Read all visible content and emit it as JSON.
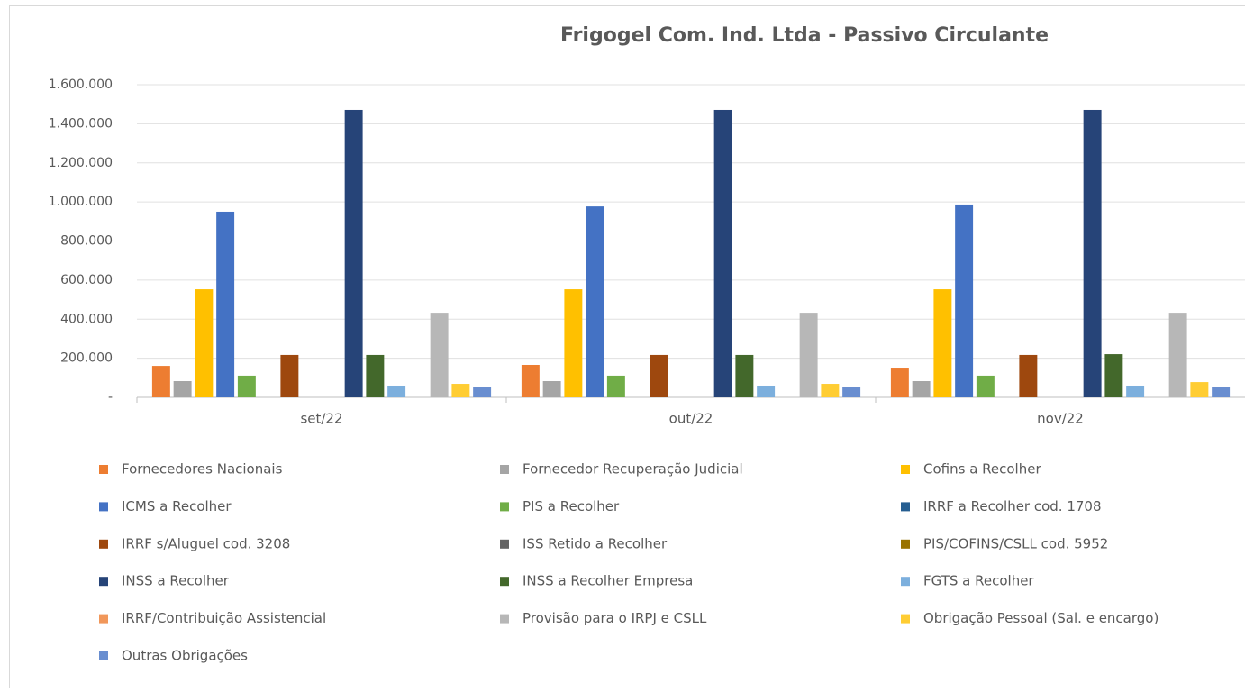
{
  "chart_data": {
    "type": "bar",
    "title": "Frigogel Com. Ind. Ltda - Passivo Circulante",
    "categories": [
      "set/22",
      "out/22",
      "nov/22"
    ],
    "series": [
      {
        "name": "Fornecedores Nacionais",
        "color": "#ed7d31",
        "values": [
          161000,
          166000,
          152000
        ]
      },
      {
        "name": "Fornecedor Recuperação Judicial",
        "color": "#a5a5a5",
        "values": [
          83000,
          83000,
          83000
        ]
      },
      {
        "name": "Cofins a Recolher",
        "color": "#ffc000",
        "values": [
          553000,
          553000,
          553000
        ]
      },
      {
        "name": "ICMS a Recolher",
        "color": "#4472c4",
        "values": [
          950000,
          977000,
          987000
        ]
      },
      {
        "name": "PIS a Recolher",
        "color": "#70ad47",
        "values": [
          111000,
          111000,
          111000
        ]
      },
      {
        "name": "IRRF a Recolher cod. 1708",
        "color": "#255e91",
        "values": [
          0,
          0,
          0
        ]
      },
      {
        "name": "IRRF s/Aluguel cod. 3208",
        "color": "#9e480e",
        "values": [
          217000,
          217000,
          217000
        ]
      },
      {
        "name": "ISS Retido a Recolher",
        "color": "#636363",
        "values": [
          0,
          0,
          0
        ]
      },
      {
        "name": "PIS/COFINS/CSLL cod. 5952",
        "color": "#997300",
        "values": [
          0,
          0,
          0
        ]
      },
      {
        "name": "INSS a Recolher",
        "color": "#264478",
        "values": [
          1471000,
          1471000,
          1471000
        ]
      },
      {
        "name": "INSS a Recolher Empresa",
        "color": "#43682b",
        "values": [
          217000,
          217000,
          221000
        ]
      },
      {
        "name": "FGTS a Recolher",
        "color": "#7cafdd",
        "values": [
          60000,
          60000,
          60000
        ]
      },
      {
        "name": "IRRF/Contribuição Assistencial",
        "color": "#f1975a",
        "values": [
          0,
          0,
          0
        ]
      },
      {
        "name": "Provisão para o IRPJ e CSLL",
        "color": "#b7b7b7",
        "values": [
          433000,
          433000,
          433000
        ]
      },
      {
        "name": "Obrigação Pessoal (Sal. e encargo)",
        "color": "#ffcd33",
        "values": [
          69000,
          69000,
          78000
        ]
      },
      {
        "name": "Outras Obrigações",
        "color": "#698ed0",
        "values": [
          55000,
          55000,
          55000
        ]
      }
    ],
    "ylim": [
      0,
      1600000
    ],
    "yticks": [
      {
        "value": 0,
        "label": "-"
      },
      {
        "value": 200000,
        "label": "200.000"
      },
      {
        "value": 400000,
        "label": "400.000"
      },
      {
        "value": 600000,
        "label": "600.000"
      },
      {
        "value": 800000,
        "label": "800.000"
      },
      {
        "value": 1000000,
        "label": "1.000.000"
      },
      {
        "value": 1200000,
        "label": "1.200.000"
      },
      {
        "value": 1400000,
        "label": "1.400.000"
      },
      {
        "value": 1600000,
        "label": "1.600.000"
      }
    ],
    "grid": true,
    "legend": "bottom"
  }
}
